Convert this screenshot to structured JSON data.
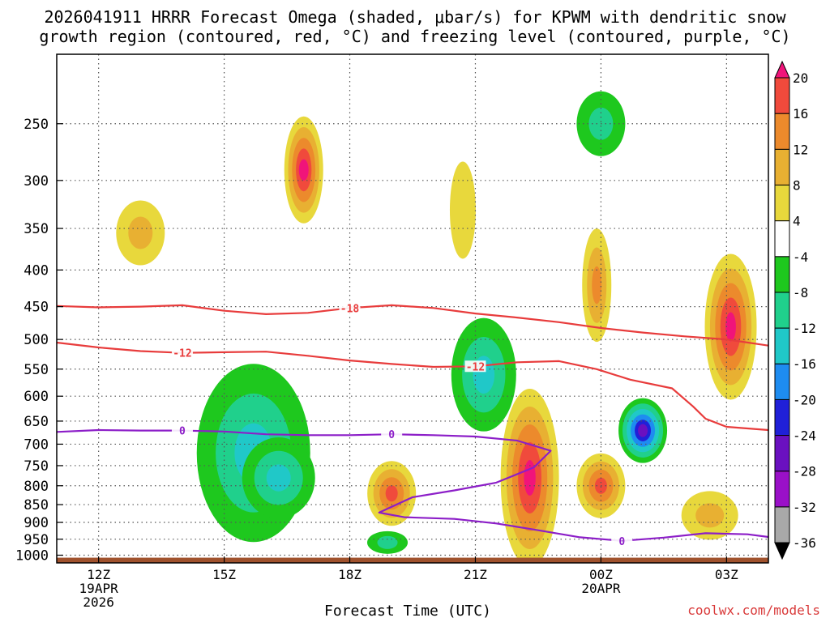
{
  "title": {
    "line1": "2026041911 HRRR Forecast Omega (shaded, μbar/s) for KPWM with dendritic snow",
    "line2": "growth region (contoured, red, °C) and freezing level (contoured, purple, °C)"
  },
  "credit": "coolwx.com/models",
  "chart_data": {
    "type": "heatmap",
    "title": "2026041911 HRRR Forecast Omega (shaded, μbar/s) for KPWM with dendritic snow growth region (contoured, red, °C) and freezing level (contoured, purple, °C)",
    "xlabel": "Forecast Time (UTC)",
    "ylabel": "",
    "x_range_hours": [
      11,
      28
    ],
    "y_range_hpa": [
      1025,
      200
    ],
    "x_ticks": [
      {
        "hour": 12,
        "label": "12Z",
        "sublabel": "19APR",
        "sublabel2": "2026"
      },
      {
        "hour": 15,
        "label": "15Z"
      },
      {
        "hour": 18,
        "label": "18Z"
      },
      {
        "hour": 21,
        "label": "21Z"
      },
      {
        "hour": 24,
        "label": "00Z",
        "sublabel": "20APR"
      },
      {
        "hour": 27,
        "label": "03Z"
      }
    ],
    "y_ticks": [
      250,
      300,
      350,
      400,
      450,
      500,
      550,
      600,
      650,
      700,
      750,
      800,
      850,
      900,
      950,
      1000
    ],
    "colorbar": {
      "levels": [
        -36,
        -32,
        -28,
        -24,
        -20,
        -16,
        -12,
        -8,
        -4,
        4,
        8,
        12,
        16,
        20
      ],
      "labels": [
        "-36",
        "-32",
        "-28",
        "-24",
        "-20",
        "-16",
        "-12",
        "-8",
        "-4",
        "4",
        "8",
        "12",
        "16",
        "20"
      ],
      "colors": [
        "#000000",
        "#a9a9a9",
        "#9a10c8",
        "#6a10c0",
        "#2020d8",
        "#1e8cf0",
        "#20c8c8",
        "#20d08c",
        "#1ec81e",
        "#ffffff",
        "#e8d83c",
        "#e8b032",
        "#ec8a2c",
        "#f04a3c",
        "#f0147a"
      ]
    },
    "omega_features": [
      {
        "hour": 22.3,
        "p": 780,
        "peak": 22,
        "note": "strong rising-motion maximum"
      },
      {
        "hour": 16.9,
        "p": 290,
        "peak": 21
      },
      {
        "hour": 19.0,
        "p": 820,
        "peak": 18
      },
      {
        "hour": 23.9,
        "p": 420,
        "peak": 14
      },
      {
        "hour": 24.0,
        "p": 800,
        "peak": 16
      },
      {
        "hour": 27.1,
        "p": 480,
        "peak": 21
      },
      {
        "hour": 13.0,
        "p": 355,
        "peak": 9
      },
      {
        "hour": 20.7,
        "p": 330,
        "peak": 6
      },
      {
        "hour": 26.6,
        "p": 880,
        "peak": 10
      },
      {
        "hour": 25.0,
        "p": 670,
        "peak": -26,
        "note": "strong sinking-motion minimum"
      },
      {
        "hour": 15.7,
        "p": 720,
        "peak": -14
      },
      {
        "hour": 16.3,
        "p": 780,
        "peak": -13
      },
      {
        "hour": 21.2,
        "p": 560,
        "peak": -14
      },
      {
        "hour": 24.0,
        "p": 250,
        "peak": -10
      },
      {
        "hour": 18.9,
        "p": 960,
        "peak": -10
      }
    ],
    "contours": [
      {
        "name": "dendritic growth region -18°C",
        "label": "-18",
        "color": "#e83c3c",
        "hour": [
          11,
          12,
          13,
          14,
          15,
          16,
          17,
          18,
          19,
          20,
          21,
          22,
          23,
          24,
          25,
          26,
          27,
          28
        ],
        "p": [
          449,
          451,
          450,
          448,
          456,
          461,
          459,
          452,
          448,
          452,
          460,
          466,
          473,
          482,
          489,
          495,
          500,
          510
        ]
      },
      {
        "name": "dendritic growth region -12°C",
        "label": "-12",
        "color": "#e83c3c",
        "hour": [
          11,
          12,
          13,
          14,
          15,
          16,
          17,
          18,
          19,
          20,
          21,
          22,
          23,
          23.9,
          24.7,
          25.7,
          26.2,
          26.5,
          27.0,
          28
        ],
        "p": [
          505,
          513,
          519,
          522,
          521,
          520,
          527,
          535,
          541,
          546,
          545,
          538,
          536,
          550,
          569,
          585,
          620,
          645,
          662,
          669
        ]
      },
      {
        "name": "freezing level 0°C",
        "label": "0",
        "color": "#8c1ec8",
        "hour": [
          11,
          12,
          13,
          14,
          15,
          16,
          17,
          18,
          19,
          20,
          21,
          22,
          22.8,
          22.4,
          21.5,
          20.5,
          19.5,
          18.7,
          19.3,
          20.5,
          21.5,
          22.5,
          23.5,
          24.5,
          25.5,
          26.5,
          27.5,
          28
        ],
        "p": [
          673,
          669,
          670,
          670,
          672,
          678,
          680,
          680,
          678,
          680,
          683,
          692,
          715,
          754,
          792,
          812,
          830,
          872,
          885,
          890,
          903,
          923,
          944,
          955,
          945,
          932,
          935,
          943
        ]
      }
    ],
    "ground": {
      "color": "#a0522d"
    }
  }
}
